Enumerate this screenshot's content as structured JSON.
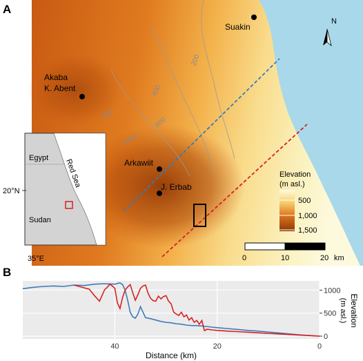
{
  "panels": {
    "a": "A",
    "b": "B"
  },
  "map": {
    "places": [
      {
        "name": "Suakin"
      },
      {
        "name": "Akaba"
      },
      {
        "name": "K. Abent"
      },
      {
        "name": "Arkawiit"
      },
      {
        "name": "J. Erbab"
      }
    ],
    "contour_labels": [
      "200",
      "400",
      "600",
      "800",
      "1000"
    ],
    "north_label": "N",
    "lat_label": "20°N",
    "lon_label": "35°E",
    "legend": {
      "title_line1": "Elevation",
      "title_line2": "(m asl.)",
      "ticks": [
        "500",
        "1,000",
        "1,500"
      ]
    },
    "scalebar": {
      "ticks": [
        "0",
        "10",
        "20"
      ],
      "unit": "km"
    },
    "inset": {
      "labels": {
        "egypt": "Egypt",
        "redsea": "Red Sea",
        "sudan": "Sudan"
      }
    },
    "colors": {
      "sea": "#a8d8ea",
      "lowland": "#fbf3c2",
      "highland": "#b04a0a",
      "transect_blue": "#3a7ab8",
      "transect_red": "#d62020"
    }
  },
  "chart_data": {
    "type": "line",
    "xlabel": "Distance (km)",
    "ylabel_line1": "Elevation",
    "ylabel_line2": "(m asl.)",
    "xlim": [
      58,
      0
    ],
    "ylim": [
      -60,
      1200
    ],
    "xticks": [
      "40",
      "20",
      "0"
    ],
    "yticks": [
      "1000",
      "500",
      "0"
    ],
    "series": [
      {
        "color": "#3a7ab8",
        "x": [
          58,
          56,
          54,
          52,
          50,
          48,
          46,
          44,
          42,
          40,
          39,
          38.5,
          38,
          37.5,
          37,
          36.5,
          36,
          35.5,
          35,
          34.5,
          34,
          33,
          32,
          31,
          30,
          29,
          28,
          27,
          26,
          25,
          24,
          23,
          22,
          21,
          20,
          18,
          16,
          14,
          12,
          10,
          8,
          6,
          4,
          2,
          0
        ],
        "y": [
          1030,
          1060,
          1080,
          1090,
          1080,
          1110,
          1100,
          1130,
          1140,
          1130,
          1160,
          1120,
          1000,
          780,
          520,
          420,
          390,
          480,
          640,
          520,
          400,
          380,
          350,
          320,
          300,
          290,
          270,
          260,
          240,
          230,
          230,
          220,
          210,
          195,
          185,
          165,
          145,
          125,
          110,
          90,
          70,
          50,
          30,
          15,
          0
        ]
      },
      {
        "color": "#d62020",
        "x": [
          48,
          47,
          46,
          45,
          44,
          43,
          42,
          41.5,
          41,
          40.5,
          40,
          39.5,
          39,
          38.5,
          38,
          37.5,
          37,
          36.5,
          36,
          35.5,
          35,
          34.5,
          34,
          33.5,
          33,
          32.5,
          32,
          31.5,
          31,
          30.5,
          30,
          29.5,
          29,
          28.5,
          28,
          27.5,
          27,
          26.5,
          26,
          25.5,
          25,
          24.5,
          24,
          23.5,
          23,
          22.5,
          22,
          21,
          20,
          18,
          16,
          14,
          12,
          10,
          8,
          6,
          4,
          2,
          0
        ],
        "y": [
          1110,
          1080,
          1050,
          1020,
          880,
          760,
          1010,
          1060,
          1130,
          1090,
          1040,
          720,
          600,
          840,
          1000,
          1070,
          1120,
          940,
          780,
          900,
          1040,
          1090,
          1110,
          930,
          820,
          770,
          760,
          870,
          810,
          860,
          880,
          760,
          700,
          520,
          480,
          450,
          520,
          420,
          460,
          350,
          400,
          300,
          340,
          260,
          340,
          120,
          150,
          135,
          125,
          110,
          98,
          85,
          72,
          60,
          48,
          36,
          24,
          12,
          0
        ]
      }
    ]
  }
}
